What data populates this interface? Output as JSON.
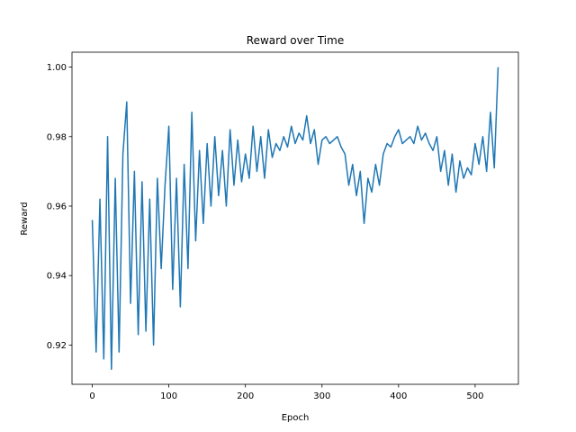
{
  "chart_data": {
    "type": "line",
    "title": "Reward over Time",
    "x_label": "Epoch",
    "y_label": "Reward",
    "color": "#1f77b4",
    "x": [
      0,
      5,
      10,
      15,
      20,
      25,
      30,
      35,
      40,
      45,
      50,
      55,
      60,
      65,
      70,
      75,
      80,
      85,
      90,
      95,
      100,
      105,
      110,
      115,
      120,
      125,
      130,
      135,
      140,
      145,
      150,
      155,
      160,
      165,
      170,
      175,
      180,
      185,
      190,
      195,
      200,
      205,
      210,
      215,
      220,
      225,
      230,
      235,
      240,
      245,
      250,
      255,
      260,
      265,
      270,
      275,
      280,
      285,
      290,
      295,
      300,
      305,
      310,
      315,
      320,
      325,
      330,
      335,
      340,
      345,
      350,
      355,
      360,
      365,
      370,
      375,
      380,
      385,
      390,
      395,
      400,
      405,
      410,
      415,
      420,
      425,
      430,
      435,
      440,
      445,
      450,
      455,
      460,
      465,
      470,
      475,
      480,
      485,
      490,
      495,
      500,
      505,
      510,
      515,
      520,
      525,
      530
    ],
    "values": [
      0.956,
      0.918,
      0.962,
      0.916,
      0.98,
      0.913,
      0.968,
      0.918,
      0.975,
      0.99,
      0.932,
      0.97,
      0.923,
      0.967,
      0.924,
      0.962,
      0.92,
      0.968,
      0.942,
      0.966,
      0.983,
      0.936,
      0.968,
      0.931,
      0.972,
      0.942,
      0.987,
      0.95,
      0.976,
      0.955,
      0.978,
      0.96,
      0.98,
      0.963,
      0.976,
      0.96,
      0.982,
      0.966,
      0.979,
      0.967,
      0.975,
      0.968,
      0.983,
      0.97,
      0.98,
      0.968,
      0.982,
      0.974,
      0.978,
      0.976,
      0.98,
      0.977,
      0.983,
      0.978,
      0.981,
      0.979,
      0.986,
      0.978,
      0.982,
      0.972,
      0.979,
      0.98,
      0.978,
      0.979,
      0.98,
      0.977,
      0.975,
      0.966,
      0.972,
      0.963,
      0.97,
      0.955,
      0.968,
      0.964,
      0.972,
      0.966,
      0.975,
      0.978,
      0.977,
      0.98,
      0.982,
      0.978,
      0.979,
      0.98,
      0.978,
      0.983,
      0.979,
      0.981,
      0.978,
      0.976,
      0.98,
      0.97,
      0.976,
      0.966,
      0.975,
      0.964,
      0.973,
      0.968,
      0.971,
      0.969,
      0.978,
      0.972,
      0.98,
      0.97,
      0.987,
      0.971,
      1.0
    ],
    "xlim": [
      -26.5,
      556.5
    ],
    "xticks": [
      0,
      100,
      200,
      300,
      400,
      500
    ],
    "ylim": [
      0.9087,
      1.0043
    ],
    "yticks": [
      0.92,
      0.94,
      0.96,
      0.98,
      {
        "value": 1,
        "label": "1.00"
      }
    ]
  }
}
